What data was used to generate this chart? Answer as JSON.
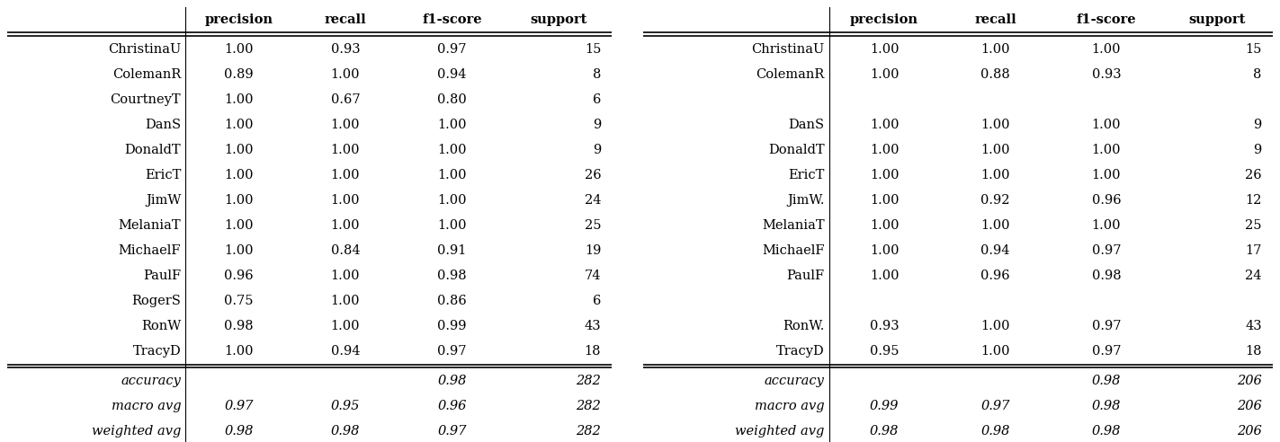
{
  "left_table": {
    "col_headers": [
      "precision",
      "recall",
      "f1-score",
      "support"
    ],
    "rows": [
      [
        "ChristinaU",
        "1.00",
        "0.93",
        "0.97",
        "15"
      ],
      [
        "ColemanR",
        "0.89",
        "1.00",
        "0.94",
        "8"
      ],
      [
        "CourtneyT",
        "1.00",
        "0.67",
        "0.80",
        "6"
      ],
      [
        "DanS",
        "1.00",
        "1.00",
        "1.00",
        "9"
      ],
      [
        "DonaldT",
        "1.00",
        "1.00",
        "1.00",
        "9"
      ],
      [
        "EricT",
        "1.00",
        "1.00",
        "1.00",
        "26"
      ],
      [
        "JimW",
        "1.00",
        "1.00",
        "1.00",
        "24"
      ],
      [
        "MelaniaT",
        "1.00",
        "1.00",
        "1.00",
        "25"
      ],
      [
        "MichaelF",
        "1.00",
        "0.84",
        "0.91",
        "19"
      ],
      [
        "PaulF",
        "0.96",
        "1.00",
        "0.98",
        "74"
      ],
      [
        "RogerS",
        "0.75",
        "1.00",
        "0.86",
        "6"
      ],
      [
        "RonW",
        "0.98",
        "1.00",
        "0.99",
        "43"
      ],
      [
        "TracyD",
        "1.00",
        "0.94",
        "0.97",
        "18"
      ]
    ],
    "footer_rows": [
      [
        "accuracy",
        "",
        "",
        "0.98",
        "282"
      ],
      [
        "macro avg",
        "0.97",
        "0.95",
        "0.96",
        "282"
      ],
      [
        "weighted avg",
        "0.98",
        "0.98",
        "0.97",
        "282"
      ]
    ]
  },
  "right_table": {
    "col_headers": [
      "precision",
      "recall",
      "f1-score",
      "support"
    ],
    "rows": [
      [
        "ChristinaU",
        "1.00",
        "1.00",
        "1.00",
        "15"
      ],
      [
        "ColemanR",
        "1.00",
        "0.88",
        "0.93",
        "8"
      ],
      [
        "",
        "",
        "",
        "",
        ""
      ],
      [
        "DanS",
        "1.00",
        "1.00",
        "1.00",
        "9"
      ],
      [
        "DonaldT",
        "1.00",
        "1.00",
        "1.00",
        "9"
      ],
      [
        "EricT",
        "1.00",
        "1.00",
        "1.00",
        "26"
      ],
      [
        "JimW.",
        "1.00",
        "0.92",
        "0.96",
        "12"
      ],
      [
        "MelaniaT",
        "1.00",
        "1.00",
        "1.00",
        "25"
      ],
      [
        "MichaelF",
        "1.00",
        "0.94",
        "0.97",
        "17"
      ],
      [
        "PaulF",
        "1.00",
        "0.96",
        "0.98",
        "24"
      ],
      [
        "",
        "",
        "",
        "",
        ""
      ],
      [
        "RonW.",
        "0.93",
        "1.00",
        "0.97",
        "43"
      ],
      [
        "TracyD",
        "0.95",
        "1.00",
        "0.97",
        "18"
      ]
    ],
    "footer_rows": [
      [
        "accuracy",
        "",
        "",
        "0.98",
        "206"
      ],
      [
        "macro avg",
        "0.99",
        "0.97",
        "0.98",
        "206"
      ],
      [
        "weighted avg",
        "0.98",
        "0.98",
        "0.98",
        "206"
      ]
    ]
  },
  "bg_color": "#ffffff",
  "text_color": "#000000",
  "fontsize": 10.5,
  "header_fontsize": 10.5
}
